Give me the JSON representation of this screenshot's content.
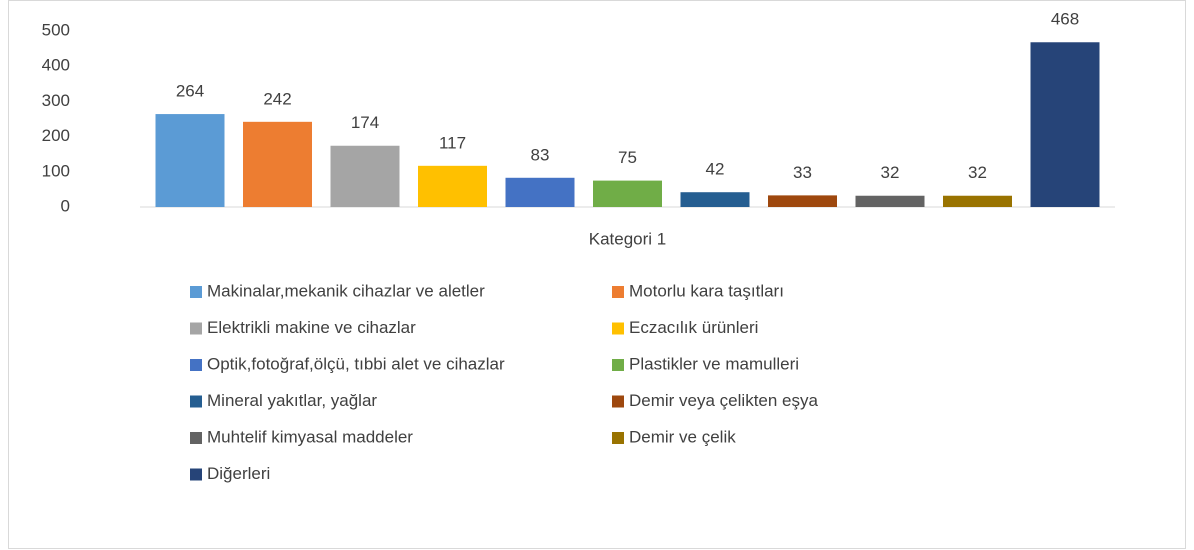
{
  "chart_data": {
    "type": "bar",
    "categories": [
      "Kategori 1"
    ],
    "series": [
      {
        "name": "Makinalar,mekanik cihazlar ve aletler",
        "color": "#5b9bd5",
        "values": [
          264
        ]
      },
      {
        "name": "Motorlu kara taşıtları",
        "color": "#ed7d31",
        "values": [
          242
        ]
      },
      {
        "name": "Elektrikli makine ve cihazlar",
        "color": "#a5a5a5",
        "values": [
          174
        ]
      },
      {
        "name": "Eczacılık ürünleri",
        "color": "#ffc000",
        "values": [
          117
        ]
      },
      {
        "name": "Optik,fotoğraf,ölçü, tıbbi alet ve cihazlar",
        "color": "#4472c4",
        "values": [
          83
        ]
      },
      {
        "name": "Plastikler ve mamulleri",
        "color": "#70ad47",
        "values": [
          75
        ]
      },
      {
        "name": "Mineral yakıtlar, yağlar",
        "color": "#255e91",
        "values": [
          42
        ]
      },
      {
        "name": "Demir veya çelikten eşya",
        "color": "#9e480e",
        "values": [
          33
        ]
      },
      {
        "name": "Muhtelif kimyasal maddeler",
        "color": "#636363",
        "values": [
          32
        ]
      },
      {
        "name": "Demir ve çelik",
        "color": "#997300",
        "values": [
          32
        ]
      },
      {
        "name": "Diğerleri",
        "color": "#264478",
        "values": [
          468
        ]
      }
    ],
    "ylim": [
      0,
      500
    ],
    "yticks": [
      0,
      100,
      200,
      300,
      400,
      500
    ],
    "legend": "bottom"
  }
}
